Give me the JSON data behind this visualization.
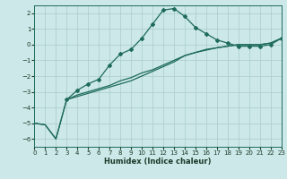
{
  "xlabel": "Humidex (Indice chaleur)",
  "bg_color": "#cce8e8",
  "grid_color": "#aacccc",
  "line_color": "#1e6b5a",
  "xlim": [
    0,
    23
  ],
  "ylim": [
    -6.5,
    2.5
  ],
  "yticks": [
    2,
    1,
    0,
    -1,
    -2,
    -3,
    -4,
    -5,
    -6
  ],
  "xticks": [
    0,
    1,
    2,
    3,
    4,
    5,
    6,
    7,
    8,
    9,
    10,
    11,
    12,
    13,
    14,
    15,
    16,
    17,
    18,
    19,
    20,
    21,
    22,
    23
  ],
  "curve_marked_x": [
    3,
    4,
    5,
    6,
    7,
    8,
    9,
    10,
    11,
    12,
    13,
    14,
    15,
    16,
    17,
    18,
    19,
    20,
    21,
    22,
    23
  ],
  "curve_marked_y": [
    -3.5,
    -2.9,
    -2.5,
    -2.2,
    -1.3,
    -0.6,
    -0.3,
    0.4,
    1.3,
    2.2,
    2.3,
    1.8,
    1.1,
    0.7,
    0.3,
    0.1,
    -0.1,
    -0.1,
    -0.1,
    0.0,
    0.4
  ],
  "curve_straight1_x": [
    0,
    1,
    2,
    3,
    4,
    5,
    6,
    7,
    8,
    9,
    10,
    11,
    12,
    13,
    14,
    15,
    16,
    17,
    18,
    19,
    20,
    21,
    22,
    23
  ],
  "curve_straight1_y": [
    -5.0,
    -5.1,
    -6.0,
    -3.5,
    -3.2,
    -3.0,
    -2.8,
    -2.6,
    -2.3,
    -2.1,
    -1.8,
    -1.6,
    -1.3,
    -1.0,
    -0.7,
    -0.5,
    -0.3,
    -0.2,
    -0.1,
    0.0,
    0.0,
    0.0,
    0.1,
    0.4
  ],
  "curve_straight2_x": [
    0,
    1,
    2,
    3,
    4,
    5,
    6,
    7,
    8,
    9,
    10,
    11,
    12,
    13,
    14,
    15,
    16,
    17,
    18,
    19,
    20,
    21,
    22,
    23
  ],
  "curve_straight2_y": [
    -5.0,
    -5.1,
    -6.0,
    -3.5,
    -3.3,
    -3.1,
    -2.9,
    -2.7,
    -2.5,
    -2.3,
    -2.0,
    -1.7,
    -1.4,
    -1.1,
    -0.7,
    -0.5,
    -0.35,
    -0.2,
    -0.1,
    0.0,
    0.0,
    0.0,
    0.1,
    0.4
  ]
}
